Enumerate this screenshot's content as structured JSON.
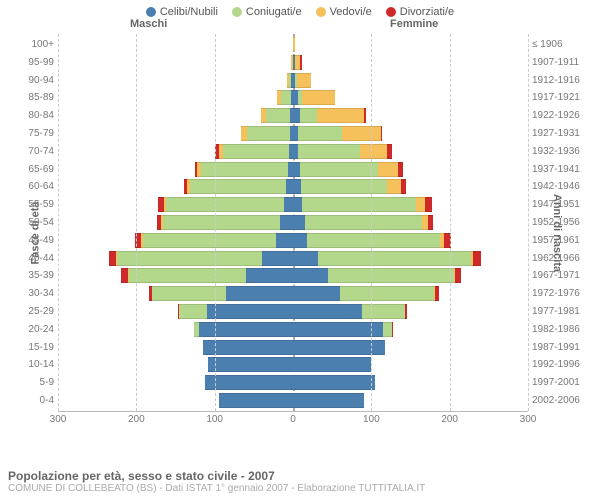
{
  "chart": {
    "type": "population-pyramid",
    "legend": [
      {
        "label": "Celibi/Nubili",
        "color": "#4a7fb0"
      },
      {
        "label": "Coniugati/e",
        "color": "#b4d88b"
      },
      {
        "label": "Vedovi/e",
        "color": "#f6c15b"
      },
      {
        "label": "Divorziati/e",
        "color": "#cf2a2a"
      }
    ],
    "header_male": "Maschi",
    "header_female": "Femmine",
    "y_left_title": "Fasce di età",
    "y_right_title": "Anni di nascita",
    "x_max": 300,
    "x_ticks": [
      300,
      200,
      100,
      0,
      100,
      200,
      300
    ],
    "grid_values": [
      300,
      200,
      100,
      0,
      100,
      200,
      300
    ],
    "background_color": "#ffffff",
    "grid_color": "#cccccc",
    "rows": [
      {
        "age": "100+",
        "birth": "≤ 1906",
        "m": [
          0,
          0,
          0,
          0
        ],
        "f": [
          0,
          0,
          2,
          0
        ]
      },
      {
        "age": "95-99",
        "birth": "1907-1911",
        "m": [
          0,
          0,
          2,
          0
        ],
        "f": [
          2,
          0,
          7,
          2
        ]
      },
      {
        "age": "90-94",
        "birth": "1912-1916",
        "m": [
          2,
          3,
          3,
          0
        ],
        "f": [
          3,
          2,
          18,
          0
        ]
      },
      {
        "age": "85-89",
        "birth": "1917-1921",
        "m": [
          3,
          12,
          5,
          0
        ],
        "f": [
          6,
          6,
          42,
          0
        ]
      },
      {
        "age": "80-84",
        "birth": "1922-1926",
        "m": [
          4,
          30,
          7,
          0
        ],
        "f": [
          9,
          22,
          60,
          2
        ]
      },
      {
        "age": "75-79",
        "birth": "1927-1931",
        "m": [
          4,
          55,
          7,
          0
        ],
        "f": [
          7,
          55,
          50,
          2
        ]
      },
      {
        "age": "70-74",
        "birth": "1932-1936",
        "m": [
          5,
          85,
          5,
          4
        ],
        "f": [
          7,
          78,
          35,
          6
        ]
      },
      {
        "age": "65-69",
        "birth": "1937-1941",
        "m": [
          7,
          110,
          5,
          3
        ],
        "f": [
          9,
          100,
          25,
          7
        ]
      },
      {
        "age": "60-64",
        "birth": "1942-1946",
        "m": [
          9,
          122,
          4,
          4
        ],
        "f": [
          10,
          110,
          18,
          6
        ]
      },
      {
        "age": "55-59",
        "birth": "1947-1951",
        "m": [
          12,
          150,
          3,
          8
        ],
        "f": [
          12,
          145,
          12,
          8
        ]
      },
      {
        "age": "50-54",
        "birth": "1952-1956",
        "m": [
          16,
          150,
          2,
          6
        ],
        "f": [
          15,
          150,
          7,
          7
        ]
      },
      {
        "age": "45-49",
        "birth": "1957-1961",
        "m": [
          22,
          170,
          2,
          8
        ],
        "f": [
          18,
          170,
          5,
          9
        ]
      },
      {
        "age": "40-44",
        "birth": "1962-1966",
        "m": [
          40,
          185,
          1,
          9
        ],
        "f": [
          32,
          195,
          3,
          10
        ]
      },
      {
        "age": "35-39",
        "birth": "1967-1971",
        "m": [
          60,
          150,
          1,
          8
        ],
        "f": [
          45,
          160,
          2,
          8
        ]
      },
      {
        "age": "30-34",
        "birth": "1972-1976",
        "m": [
          85,
          95,
          0,
          4
        ],
        "f": [
          60,
          120,
          1,
          5
        ]
      },
      {
        "age": "25-29",
        "birth": "1977-1981",
        "m": [
          110,
          35,
          0,
          2
        ],
        "f": [
          88,
          55,
          0,
          3
        ]
      },
      {
        "age": "20-24",
        "birth": "1982-1986",
        "m": [
          120,
          6,
          0,
          1
        ],
        "f": [
          115,
          12,
          0,
          1
        ]
      },
      {
        "age": "15-19",
        "birth": "1987-1991",
        "m": [
          115,
          0,
          0,
          0
        ],
        "f": [
          118,
          0,
          0,
          0
        ]
      },
      {
        "age": "10-14",
        "birth": "1992-1996",
        "m": [
          108,
          0,
          0,
          0
        ],
        "f": [
          100,
          0,
          0,
          0
        ]
      },
      {
        "age": "5-9",
        "birth": "1997-2001",
        "m": [
          112,
          0,
          0,
          0
        ],
        "f": [
          105,
          0,
          0,
          0
        ]
      },
      {
        "age": "0-4",
        "birth": "2002-2006",
        "m": [
          95,
          0,
          0,
          0
        ],
        "f": [
          90,
          0,
          0,
          0
        ]
      }
    ]
  },
  "footer": {
    "title": "Popolazione per età, sesso e stato civile - 2007",
    "sub": "COMUNE DI COLLEBEATO (BS) - Dati ISTAT 1° gennaio 2007 - Elaborazione TUTTITALIA.IT"
  }
}
